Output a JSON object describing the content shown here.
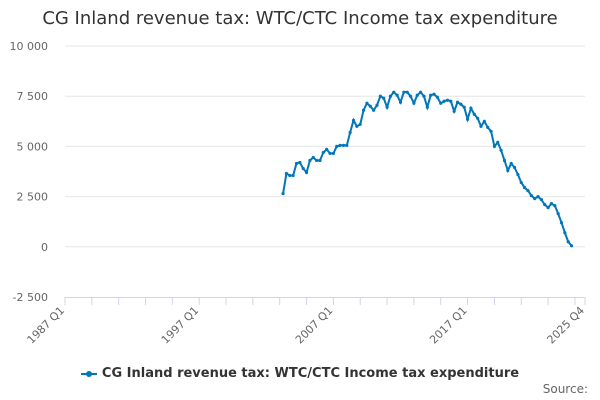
{
  "chart_data": {
    "type": "line",
    "title": "CG Inland revenue tax: WTC/CTC Income tax expenditure",
    "xlabel": "",
    "ylabel": "",
    "ylim": [
      -2500,
      10000
    ],
    "yticks": [
      -2500,
      0,
      2500,
      5000,
      7500,
      10000
    ],
    "ytick_labels": [
      "-2 500",
      "0",
      "2 500",
      "5 000",
      "7 500",
      "10 000"
    ],
    "xrange": [
      "1987 Q1",
      "2025 Q4"
    ],
    "xtick_labels": [
      "1987 Q1",
      "1997 Q1",
      "2007 Q1",
      "2017 Q1",
      "2025 Q4"
    ],
    "grid": true,
    "legend_position": "bottom",
    "series": [
      {
        "name": "CG Inland revenue tax: WTC/CTC Income tax expenditure",
        "color": "#0077bb",
        "start": "2003 Q2",
        "frequency": "quarterly",
        "values": [
          2650,
          3650,
          3550,
          3550,
          4150,
          4200,
          3900,
          3700,
          4300,
          4450,
          4300,
          4300,
          4700,
          4850,
          4650,
          4650,
          5000,
          5050,
          5050,
          5050,
          5700,
          6300,
          6000,
          6100,
          6800,
          7150,
          7000,
          6800,
          7050,
          7500,
          7400,
          6950,
          7500,
          7700,
          7550,
          7200,
          7700,
          7700,
          7500,
          7150,
          7550,
          7700,
          7500,
          6950,
          7550,
          7600,
          7450,
          7150,
          7250,
          7300,
          7250,
          6750,
          7200,
          7100,
          6950,
          6350,
          6900,
          6600,
          6400,
          6000,
          6250,
          5950,
          5750,
          5000,
          5200,
          4800,
          4300,
          3800,
          4150,
          3950,
          3600,
          3200,
          2950,
          2800,
          2550,
          2400,
          2500,
          2350,
          2100,
          1950,
          2150,
          2050,
          1650,
          1200,
          700,
          250,
          50
        ]
      }
    ]
  },
  "source_label": "Source:"
}
